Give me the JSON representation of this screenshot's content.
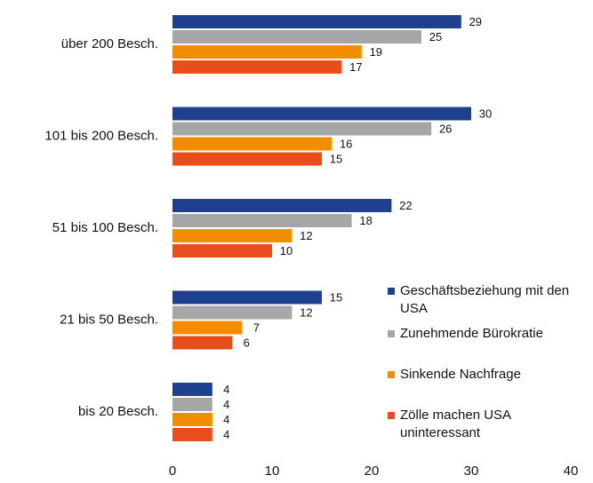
{
  "chart_data": {
    "type": "barh",
    "categories": [
      "über 200 Besch.",
      "101 bis 200 Besch.",
      "51 bis 100 Besch.",
      "21 bis 50 Besch.",
      "bis 20 Besch."
    ],
    "series": [
      {
        "name": "Geschäftsbeziehung mit den USA",
        "color": "#1f3f8f",
        "values": [
          29,
          30,
          22,
          15,
          4
        ]
      },
      {
        "name": "Zunehmende Bürokratie",
        "color": "#a6a6a6",
        "values": [
          25,
          26,
          18,
          12,
          4
        ]
      },
      {
        "name": "Sinkende Nachfrage",
        "color": "#f28c00",
        "values": [
          19,
          16,
          12,
          7,
          4
        ]
      },
      {
        "name": "Zölle machen USA uninteressant",
        "color": "#e84e1b",
        "values": [
          17,
          15,
          10,
          6,
          4
        ]
      }
    ],
    "xlim": [
      0,
      40
    ],
    "xticks": [
      0,
      10,
      20,
      30,
      40
    ],
    "grid": false,
    "legend": "right"
  }
}
